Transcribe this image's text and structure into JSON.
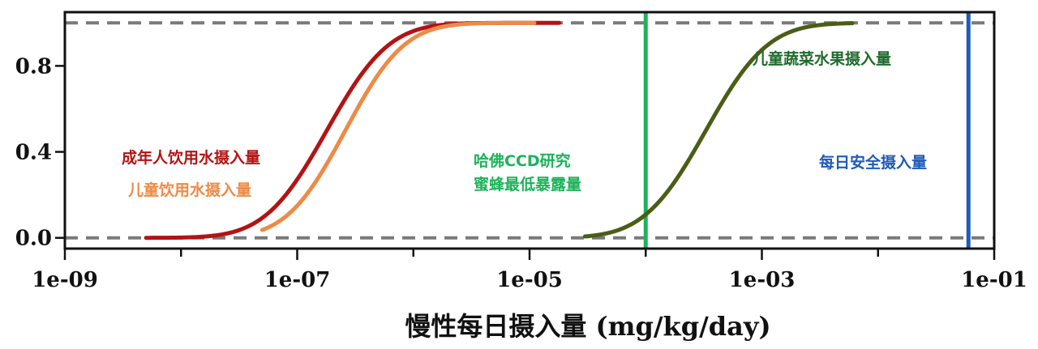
{
  "chart_data": {
    "type": "line",
    "xscale": "log",
    "xlabel": "慢性每日摄入量 (mg/kg/day)",
    "ylabel": "",
    "title": "",
    "xlim": [
      1e-09,
      0.1
    ],
    "ylim": [
      -0.05,
      1.05
    ],
    "x_ticks": [
      1e-09,
      1e-07,
      1e-05,
      0.001,
      0.1
    ],
    "x_tick_labels": [
      "1e-09",
      "1e-07",
      "1e-05",
      "1e-03",
      "1e-01"
    ],
    "y_ticks": [
      0.0,
      0.4,
      0.8
    ],
    "y_tick_labels": [
      "0.0",
      "0.4",
      "0.8"
    ],
    "reference_lines": [
      {
        "orientation": "horizontal",
        "y": 0.0,
        "style": "dashed",
        "color": "#7a7a7a"
      },
      {
        "orientation": "horizontal",
        "y": 1.0,
        "style": "dashed",
        "color": "#7a7a7a"
      },
      {
        "orientation": "vertical",
        "x": 0.0001,
        "color": "#1cb35a",
        "label": "哈佛CCD研究\n蜜蜂最低暴露量"
      },
      {
        "orientation": "vertical",
        "x": 0.06,
        "color": "#1f5bb8",
        "label": "每日安全摄入量"
      }
    ],
    "series": [
      {
        "name": "成年人饮用水摄入量",
        "color": "#b31313",
        "median": 1.8e-07,
        "spread": 0.42,
        "x_range": [
          5e-09,
          1.8e-05
        ]
      },
      {
        "name": "儿童饮用水摄入量",
        "color": "#ee8a45",
        "median": 2.6e-07,
        "spread": 0.4,
        "x_range": [
          5e-08,
          1.1e-05
        ]
      },
      {
        "name": "儿童蔬菜水果摄入量",
        "color": "#4a5d16",
        "median": 0.00033,
        "spread": 0.42,
        "x_range": [
          3e-05,
          0.006
        ]
      }
    ],
    "annotations": [
      {
        "text": "成年人饮用水摄入量",
        "color": "#b31313"
      },
      {
        "text": "儿童饮用水摄入量",
        "color": "#ee8a45"
      },
      {
        "text": "儿童蔬菜水果摄入量",
        "color": "#1f6b2c"
      },
      {
        "text": "哈佛CCD研究",
        "color": "#1cb35a"
      },
      {
        "text": "蜜蜂最低暴露量",
        "color": "#1cb35a"
      },
      {
        "text": "每日安全摄入量",
        "color": "#1f5bb8"
      }
    ]
  }
}
